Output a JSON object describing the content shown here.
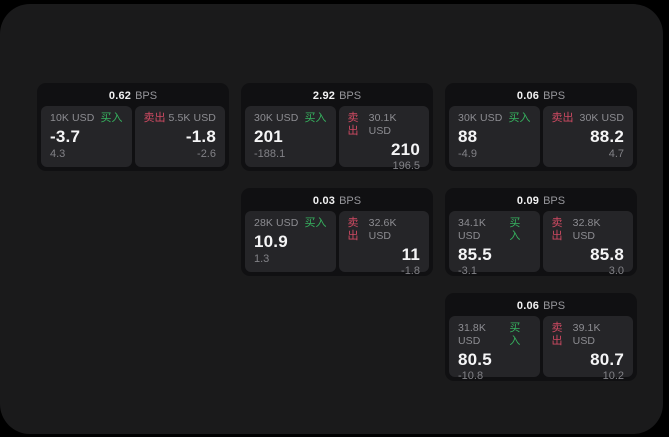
{
  "app": {
    "page_bg": "#000000",
    "panel_bg": "#1a1a1b"
  },
  "colors": {
    "card_bg": "#101012",
    "tile_bg": "#252528",
    "text_primary": "#f5f5f6",
    "text_secondary": "#8d8d92",
    "buy_green": "#36b35f",
    "sell_red": "#cf4a62"
  },
  "labels": {
    "bps": "BPS",
    "buy": "买入",
    "sell": "卖出"
  },
  "cards": [
    {
      "col": 1,
      "row": 1,
      "bps": "0.62",
      "buy": {
        "amount": "10K USD",
        "value": "-3.7",
        "sub": "4.3"
      },
      "sell": {
        "amount": "5.5K USD",
        "value": "-1.8",
        "sub": "-2.6"
      }
    },
    {
      "col": 2,
      "row": 1,
      "bps": "2.92",
      "buy": {
        "amount": "30K USD",
        "value": "201",
        "sub": "-188.1"
      },
      "sell": {
        "amount": "30.1K USD",
        "value": "210",
        "sub": "196.5"
      }
    },
    {
      "col": 3,
      "row": 1,
      "bps": "0.06",
      "buy": {
        "amount": "30K USD",
        "value": "88",
        "sub": "-4.9"
      },
      "sell": {
        "amount": "30K USD",
        "value": "88.2",
        "sub": "4.7"
      }
    },
    {
      "col": 2,
      "row": 2,
      "bps": "0.03",
      "buy": {
        "amount": "28K USD",
        "value": "10.9",
        "sub": "1.3"
      },
      "sell": {
        "amount": "32.6K USD",
        "value": "11",
        "sub": "-1.8"
      }
    },
    {
      "col": 3,
      "row": 2,
      "bps": "0.09",
      "buy": {
        "amount": "34.1K USD",
        "value": "85.5",
        "sub": "-3.1"
      },
      "sell": {
        "amount": "32.8K USD",
        "value": "85.8",
        "sub": "3.0"
      }
    },
    {
      "col": 3,
      "row": 3,
      "bps": "0.06",
      "buy": {
        "amount": "31.8K USD",
        "value": "80.5",
        "sub": "-10.8"
      },
      "sell": {
        "amount": "39.1K USD",
        "value": "80.7",
        "sub": "10.2"
      }
    }
  ]
}
